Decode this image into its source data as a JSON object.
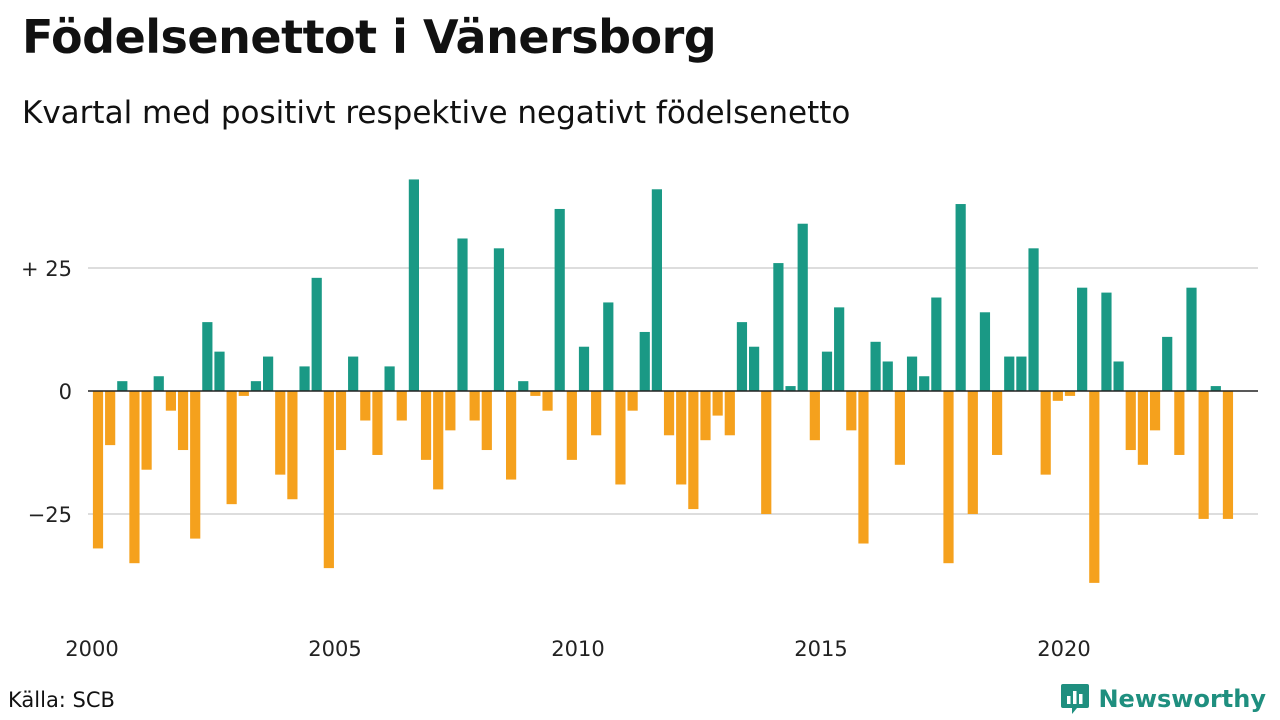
{
  "title": "Födelsenettot i Vänersborg",
  "subtitle": "Kvartal med positivt respektive negativt födelsenetto",
  "source": "Källa: SCB",
  "brand": "Newsworthy",
  "colors": {
    "positive": "#1a9985",
    "negative": "#f5a11d",
    "grid": "#dddddd",
    "zero": "#222222",
    "brand": "#1f8f7f"
  },
  "chart_data": {
    "type": "bar",
    "title": "Födelsenettot i Vänersborg",
    "subtitle": "Kvartal med positivt respektive negativt födelsenetto",
    "xlabel": "",
    "ylabel": "",
    "x_start": "2000Q1",
    "x_tick_labels": [
      "2000",
      "2005",
      "2010",
      "2015",
      "2020"
    ],
    "y_tick_labels": [
      {
        "value": 25,
        "label": "+ 25"
      },
      {
        "value": 0,
        "label": "0"
      },
      {
        "value": -25,
        "label": "−25"
      }
    ],
    "ylim": [
      -45,
      45
    ],
    "grid": true,
    "values": [
      -32,
      -11,
      2,
      -35,
      -16,
      3,
      -4,
      -12,
      -30,
      14,
      8,
      -23,
      -1,
      2,
      7,
      -17,
      -22,
      5,
      23,
      -36,
      -12,
      7,
      -6,
      -13,
      5,
      -6,
      43,
      -14,
      -20,
      -8,
      31,
      -6,
      -12,
      29,
      -18,
      2,
      -1,
      -4,
      37,
      -14,
      9,
      -9,
      18,
      -19,
      -4,
      12,
      41,
      -9,
      -19,
      -24,
      -10,
      -5,
      -9,
      14,
      9,
      -25,
      26,
      1,
      34,
      -10,
      8,
      17,
      -8,
      -31,
      10,
      6,
      -15,
      7,
      3,
      19,
      -35,
      38,
      -25,
      16,
      -13,
      7,
      7,
      29,
      -17,
      -2,
      -1,
      21,
      -39,
      20,
      6,
      -12,
      -15,
      -8,
      11,
      -13,
      21,
      -26,
      1,
      -26
    ]
  }
}
